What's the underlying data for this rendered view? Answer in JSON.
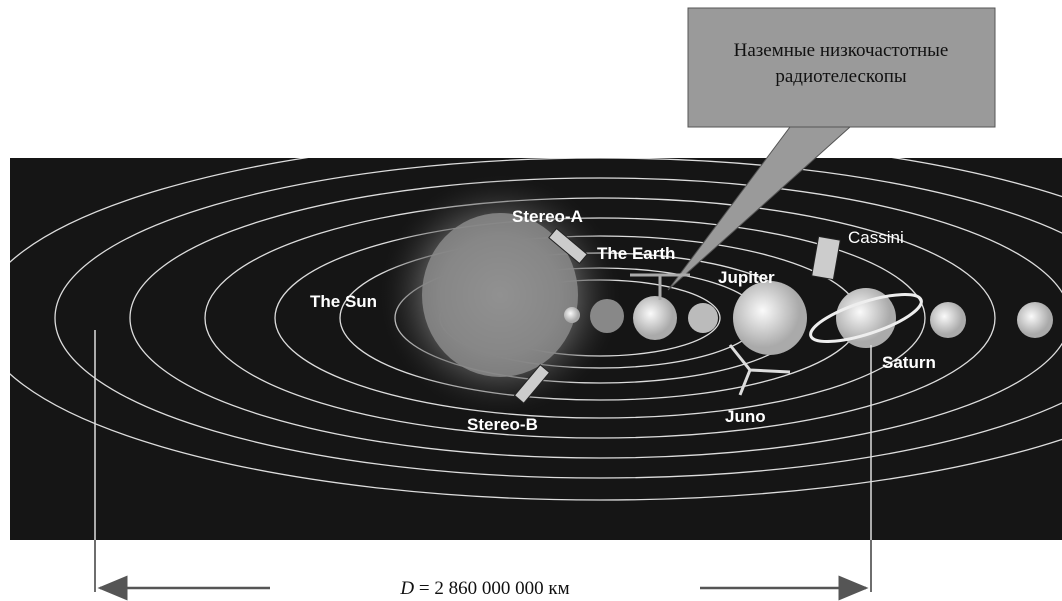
{
  "callout": {
    "lines": [
      "Наземные низкочастотные",
      "радиотелескопы"
    ]
  },
  "labels": {
    "stereo_a": "Stereo-A",
    "earth": "The Earth",
    "cassini": "Cassini",
    "jupiter": "Jupiter",
    "sun": "The Sun",
    "saturn": "Saturn",
    "stereo_b": "Stereo-B",
    "juno": "Juno"
  },
  "distance": {
    "symbol": "D",
    "value": "= 2 860 000 000 км"
  }
}
